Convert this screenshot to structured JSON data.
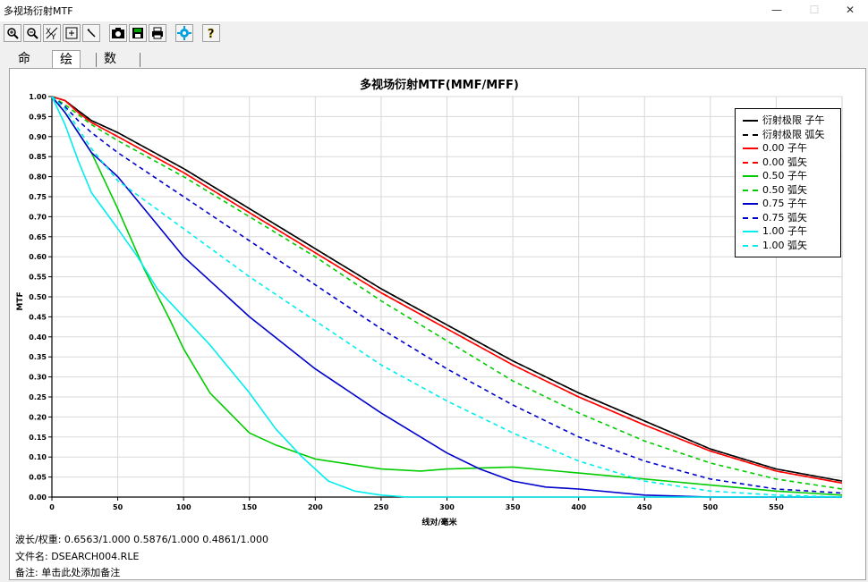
{
  "window": {
    "title": "多视场衍射MTF",
    "minimize_glyph": "—",
    "maximize_glyph": "☐",
    "close_glyph": "✕"
  },
  "toolbar": {
    "buttons": [
      {
        "name": "zoom-in",
        "glyph": "🔍"
      },
      {
        "name": "zoom-out",
        "glyph": "🔍"
      },
      {
        "name": "axis-xy",
        "glyph": "XY"
      },
      {
        "name": "fit",
        "glyph": "⊠"
      },
      {
        "name": "pen",
        "glyph": "✎"
      },
      {
        "name": "camera",
        "glyph": "◙"
      },
      {
        "name": "save",
        "glyph": "▣"
      },
      {
        "name": "print",
        "glyph": "⎙"
      },
      {
        "name": "settings",
        "glyph": "✹"
      },
      {
        "name": "help",
        "glyph": "?"
      }
    ]
  },
  "tabs": [
    {
      "label": "命令"
    },
    {
      "label": "绘图"
    },
    {
      "label": "数据"
    }
  ],
  "chart_data": {
    "type": "line",
    "title": "多视场衍射MTF(MMF/MFF)",
    "xlabel": "线对/毫米",
    "ylabel": "MTF",
    "xlim": [
      0,
      600
    ],
    "ylim": [
      0,
      1
    ],
    "xticks": [
      0,
      50,
      100,
      150,
      200,
      250,
      300,
      350,
      400,
      450,
      500,
      550
    ],
    "yticks": [
      0.0,
      0.05,
      0.1,
      0.15,
      0.2,
      0.25,
      0.3,
      0.35,
      0.4,
      0.45,
      0.5,
      0.55,
      0.6,
      0.65,
      0.7,
      0.75,
      0.8,
      0.85,
      0.9,
      0.95,
      1.0
    ],
    "grid": true,
    "legend_position": "top-right",
    "series": [
      {
        "name": "衍射极限 子午",
        "color": "#000000",
        "style": "solid",
        "x": [
          0,
          10,
          20,
          30,
          50,
          100,
          150,
          200,
          250,
          300,
          350,
          400,
          450,
          500,
          550,
          600
        ],
        "y": [
          1.0,
          0.99,
          0.965,
          0.94,
          0.91,
          0.82,
          0.72,
          0.62,
          0.52,
          0.43,
          0.34,
          0.26,
          0.19,
          0.12,
          0.07,
          0.04
        ]
      },
      {
        "name": "衍射极限 弧矢",
        "color": "#000000",
        "style": "dash",
        "x": [
          0,
          10,
          20,
          30,
          50,
          100,
          150,
          200,
          250,
          300,
          350,
          400,
          450,
          500,
          550,
          600
        ],
        "y": [
          1.0,
          0.99,
          0.965,
          0.94,
          0.91,
          0.82,
          0.72,
          0.62,
          0.52,
          0.43,
          0.34,
          0.26,
          0.19,
          0.12,
          0.07,
          0.04
        ]
      },
      {
        "name": "0.00 子午",
        "color": "#ff0000",
        "style": "solid",
        "x": [
          0,
          10,
          20,
          30,
          50,
          100,
          150,
          200,
          250,
          300,
          350,
          400,
          450,
          500,
          550,
          600
        ],
        "y": [
          1.0,
          0.99,
          0.96,
          0.935,
          0.9,
          0.81,
          0.71,
          0.61,
          0.51,
          0.42,
          0.33,
          0.25,
          0.18,
          0.115,
          0.065,
          0.035
        ]
      },
      {
        "name": "0.00 弧矢",
        "color": "#ff0000",
        "style": "dash",
        "x": [
          0,
          10,
          20,
          30,
          50,
          100,
          150,
          200,
          250,
          300,
          350,
          400,
          450,
          500,
          550,
          600
        ],
        "y": [
          1.0,
          0.99,
          0.96,
          0.935,
          0.9,
          0.81,
          0.71,
          0.61,
          0.51,
          0.42,
          0.33,
          0.25,
          0.18,
          0.115,
          0.065,
          0.035
        ]
      },
      {
        "name": "0.50 子午",
        "color": "#00cc00",
        "style": "solid",
        "x": [
          0,
          10,
          20,
          30,
          50,
          70,
          90,
          100,
          120,
          150,
          170,
          200,
          250,
          280,
          300,
          350,
          400,
          450,
          500,
          550,
          600
        ],
        "y": [
          1.0,
          0.96,
          0.91,
          0.86,
          0.72,
          0.57,
          0.44,
          0.37,
          0.26,
          0.16,
          0.13,
          0.095,
          0.07,
          0.065,
          0.07,
          0.075,
          0.06,
          0.045,
          0.03,
          0.015,
          0.005
        ]
      },
      {
        "name": "0.50 弧矢",
        "color": "#00cc00",
        "style": "dash",
        "x": [
          0,
          10,
          20,
          30,
          50,
          100,
          150,
          200,
          250,
          300,
          350,
          400,
          450,
          500,
          550,
          600
        ],
        "y": [
          1.0,
          0.98,
          0.955,
          0.93,
          0.89,
          0.8,
          0.7,
          0.6,
          0.49,
          0.39,
          0.29,
          0.21,
          0.14,
          0.085,
          0.045,
          0.02
        ]
      },
      {
        "name": "0.75 子午",
        "color": "#0000cc",
        "style": "solid",
        "x": [
          0,
          10,
          20,
          30,
          50,
          75,
          100,
          150,
          200,
          250,
          300,
          325,
          350,
          375,
          400,
          450,
          500,
          550,
          600
        ],
        "y": [
          1.0,
          0.96,
          0.91,
          0.86,
          0.8,
          0.7,
          0.6,
          0.45,
          0.32,
          0.21,
          0.11,
          0.07,
          0.04,
          0.025,
          0.02,
          0.005,
          0.0,
          0.0,
          0.0
        ]
      },
      {
        "name": "0.75 弧矢",
        "color": "#0000cc",
        "style": "dash",
        "x": [
          0,
          10,
          20,
          30,
          50,
          100,
          150,
          200,
          250,
          300,
          350,
          400,
          450,
          500,
          550,
          600
        ],
        "y": [
          1.0,
          0.975,
          0.94,
          0.91,
          0.86,
          0.75,
          0.64,
          0.53,
          0.42,
          0.32,
          0.23,
          0.15,
          0.09,
          0.045,
          0.02,
          0.01
        ]
      },
      {
        "name": "1.00 子午",
        "color": "#00eeee",
        "style": "solid",
        "x": [
          0,
          10,
          20,
          30,
          50,
          65,
          80,
          100,
          120,
          150,
          170,
          190,
          210,
          230,
          250,
          270,
          300,
          600
        ],
        "y": [
          1.0,
          0.93,
          0.84,
          0.76,
          0.67,
          0.6,
          0.52,
          0.45,
          0.38,
          0.26,
          0.17,
          0.1,
          0.04,
          0.015,
          0.005,
          0.0,
          0.0,
          0.0
        ]
      },
      {
        "name": "1.00 弧矢",
        "color": "#00eeee",
        "style": "dash",
        "x": [
          0,
          10,
          20,
          30,
          50,
          100,
          150,
          200,
          250,
          300,
          350,
          400,
          450,
          500,
          550,
          600
        ],
        "y": [
          1.0,
          0.97,
          0.92,
          0.87,
          0.79,
          0.67,
          0.55,
          0.44,
          0.33,
          0.24,
          0.16,
          0.09,
          0.04,
          0.015,
          0.005,
          0.0
        ]
      }
    ]
  },
  "info": {
    "wavelength": "波长/权重:  0.6563/1.000  0.5876/1.000  0.4861/1.000",
    "filename": "文件名:  DSEARCH004.RLE",
    "note": "备注:  单击此处添加备注"
  }
}
